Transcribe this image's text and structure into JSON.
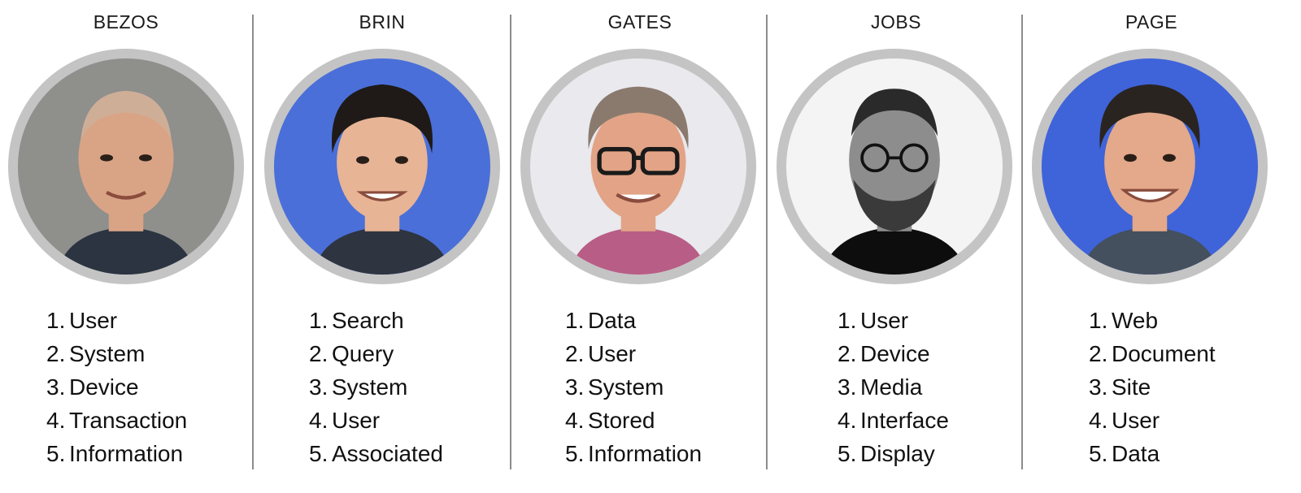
{
  "columns": [
    {
      "name": "BEZOS",
      "portrait": "bald-man-portrait-icon",
      "bg": "#8f8f8c",
      "skin": "#d9a486",
      "hair": "#cfae98",
      "shirt": "#2b3440",
      "items": [
        {
          "n": "1.",
          "t": "User"
        },
        {
          "n": "2.",
          "t": "System"
        },
        {
          "n": "3.",
          "t": "Device"
        },
        {
          "n": "4.",
          "t": "Transaction"
        },
        {
          "n": "5.",
          "t": "Information"
        }
      ]
    },
    {
      "name": "BRIN",
      "portrait": "man-dark-hair-portrait-icon",
      "bg": "#4a6fd8",
      "skin": "#e8b496",
      "hair": "#1f1a17",
      "shirt": "#2e3440",
      "items": [
        {
          "n": "1.",
          "t": "Search"
        },
        {
          "n": "2.",
          "t": "Query"
        },
        {
          "n": "3.",
          "t": "System"
        },
        {
          "n": "4.",
          "t": "User"
        },
        {
          "n": "5.",
          "t": "Associated"
        }
      ]
    },
    {
      "name": "GATES",
      "portrait": "man-glasses-portrait-icon",
      "bg": "#e9e9ee",
      "skin": "#e2a386",
      "hair": "#8a7a6e",
      "shirt": "#b85d86",
      "items": [
        {
          "n": "1.",
          "t": "Data"
        },
        {
          "n": "2.",
          "t": "User"
        },
        {
          "n": "3.",
          "t": "System"
        },
        {
          "n": "4.",
          "t": "Stored"
        },
        {
          "n": "5.",
          "t": "Information"
        }
      ]
    },
    {
      "name": "JOBS",
      "portrait": "man-glasses-beard-bw-portrait-icon",
      "bg": "#f4f4f4",
      "skin": "#8d8d8d",
      "hair": "#2a2a2a",
      "shirt": "#0d0d0d",
      "items": [
        {
          "n": "1.",
          "t": "User"
        },
        {
          "n": "2.",
          "t": "Device"
        },
        {
          "n": "3.",
          "t": "Media"
        },
        {
          "n": "4.",
          "t": "Interface"
        },
        {
          "n": "5.",
          "t": "Display"
        }
      ]
    },
    {
      "name": "PAGE",
      "portrait": "man-smiling-portrait-icon",
      "bg": "#3f63d9",
      "skin": "#e3a98a",
      "hair": "#2a2420",
      "shirt": "#44505e",
      "items": [
        {
          "n": "1.",
          "t": "Web"
        },
        {
          "n": "2.",
          "t": "Document"
        },
        {
          "n": "3.",
          "t": "Site"
        },
        {
          "n": "4.",
          "t": "User"
        },
        {
          "n": "5.",
          "t": "Data"
        }
      ]
    }
  ]
}
